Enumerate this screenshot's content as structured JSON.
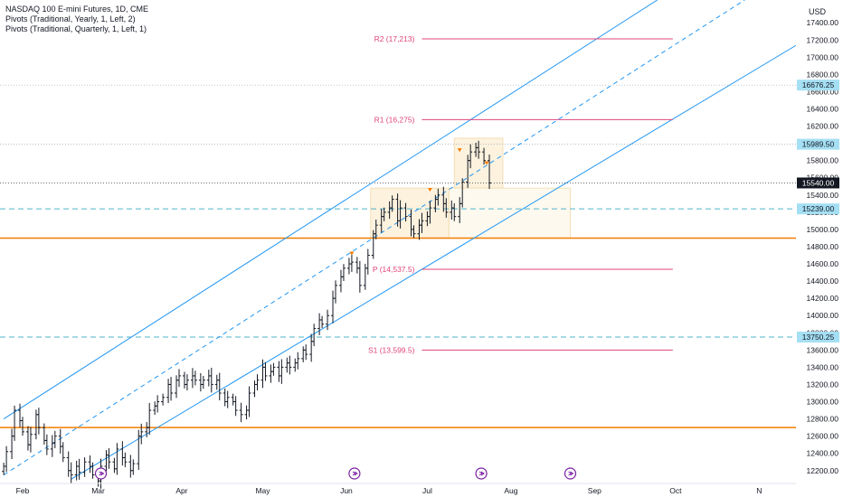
{
  "header": {
    "symbol": "NASDAQ 100 E-mini Futures, 1D, CME",
    "indicator_1": "Pivots (Traditional, Yearly, 1, Left, 2)",
    "indicator_2": "Pivots (Traditional, Quarterly, 1, Left, 1)"
  },
  "currency": "USD",
  "colors": {
    "up_candle": "#131722",
    "pivot": "#e0457b",
    "channel": "#2196f3",
    "support_orange": "#f57c00",
    "box_fill": "#fbf0d8",
    "badge_fill": "#a5dff3",
    "current_price_fill": "#131722",
    "event_icon": "#7b1fa2"
  },
  "chart_data": {
    "type": "candlestick",
    "ylim": [
      12100,
      17700
    ],
    "y_ticks": [
      12200,
      12400,
      12600,
      12800,
      13000,
      13200,
      13400,
      13600,
      13800,
      14000,
      14200,
      14400,
      14600,
      14800,
      15000,
      15200,
      15400,
      15600,
      15800,
      16000,
      16200,
      16400,
      16600,
      16800,
      17000,
      17200,
      17400
    ],
    "y_tick_labels": [
      "12200.00",
      "12400.00",
      "12600.00",
      "12800.00",
      "13000.00",
      "13200.00",
      "13400.00",
      "13600.00",
      "13800.00",
      "14000.00",
      "14200.00",
      "14400.00",
      "14600.00",
      "14800.00",
      "15000.00",
      "15200.00",
      "15400.00",
      "15600.00",
      "15800.00",
      "16000.00",
      "16200.00",
      "16400.00",
      "16600.00",
      "16800.00",
      "17000.00",
      "17200.00",
      "17400.00"
    ],
    "x_labels": [
      {
        "label": "Feb",
        "date": "2023-02-01"
      },
      {
        "label": "Mar",
        "date": "2023-03-01"
      },
      {
        "label": "Apr",
        "date": "2023-04-01"
      },
      {
        "label": "May",
        "date": "2023-05-01"
      },
      {
        "label": "Jun",
        "date": "2023-06-01"
      },
      {
        "label": "Jul",
        "date": "2023-07-01"
      },
      {
        "label": "Aug",
        "date": "2023-08-01"
      },
      {
        "label": "Sep",
        "date": "2023-09-01"
      },
      {
        "label": "Oct",
        "date": "2023-10-01"
      },
      {
        "label": "N",
        "date": "2023-11-01"
      }
    ],
    "first_bar_date": "2023-01-25",
    "last_bar_date": "2023-07-24",
    "closes": [
      12250,
      12420,
      12600,
      12900,
      12780,
      12650,
      12500,
      12620,
      12850,
      12700,
      12550,
      12450,
      12520,
      12600,
      12480,
      12350,
      12200,
      12150,
      12250,
      12180,
      12300,
      12250,
      12150,
      12080,
      12250,
      12380,
      12300,
      12220,
      12450,
      12350,
      12300,
      12200,
      12280,
      12600,
      12650,
      12700,
      12900,
      12950,
      13000,
      13050,
      13200,
      13100,
      13250,
      13300,
      13200,
      13250,
      13300,
      13250,
      13200,
      13250,
      13300,
      13200,
      13250,
      13100,
      13000,
      13050,
      13000,
      12900,
      12850,
      12900,
      13100,
      13200,
      13250,
      13400,
      13300,
      13350,
      13400,
      13300,
      13400,
      13450,
      13400,
      13450,
      13500,
      13600,
      13550,
      13700,
      13850,
      13950,
      13900,
      14000,
      14200,
      14350,
      14450,
      14550,
      14600,
      14620,
      14550,
      14350,
      14550,
      14700,
      14950,
      15050,
      15150,
      15200,
      15250,
      15350,
      15100,
      15250,
      15150,
      15000,
      14950,
      15050,
      15100,
      15150,
      15250,
      15350,
      15400,
      15300,
      15200,
      15250,
      15150,
      15300,
      15550,
      15800,
      15900,
      15950,
      15900,
      15800,
      15540
    ],
    "pivot_levels": [
      {
        "label": "R2 (17,213)",
        "value": 17213
      },
      {
        "label": "R1 (16,275)",
        "value": 16275
      },
      {
        "label": "P (14,537.5)",
        "value": 14537.5
      },
      {
        "label": "S1 (13,599.5)",
        "value": 13599.5
      }
    ],
    "horizontal_support": [
      14900,
      12700
    ],
    "dotted_levels": [
      16676.25,
      15989.5,
      15239,
      13750.25
    ],
    "price_badges": [
      {
        "label": "16676.25",
        "value": 16676.25
      },
      {
        "label": "15989.50",
        "value": 15989.5
      },
      {
        "label": "15540.00",
        "value": 15540,
        "current": true
      },
      {
        "label": "15239.00",
        "value": 15239
      },
      {
        "label": "13750.25",
        "value": 13750.25
      }
    ],
    "channel": {
      "upper": [
        {
          "date": "2023-01-25",
          "value": 12800
        },
        {
          "date": "2023-10-01",
          "value": 17800
        }
      ],
      "middle": [
        {
          "date": "2023-01-25",
          "value": 12150
        },
        {
          "date": "2023-10-01",
          "value": 17150
        }
      ],
      "lower": [
        {
          "date": "2023-02-19",
          "value": 12100
        },
        {
          "date": "2023-10-01",
          "value": 16300
        }
      ]
    },
    "boxes": [
      {
        "from": "2023-06-10",
        "to": "2023-07-09",
        "top": 15480,
        "bottom": 14900
      },
      {
        "from": "2023-07-11",
        "to": "2023-07-29",
        "top": 16060,
        "bottom": 15480
      },
      {
        "from": "2023-07-09",
        "to": "2023-08-23",
        "top": 15480,
        "bottom": 14900
      }
    ],
    "event_markers": [
      "2023-03-02",
      "2023-06-04",
      "2023-07-21",
      "2023-08-23"
    ]
  }
}
